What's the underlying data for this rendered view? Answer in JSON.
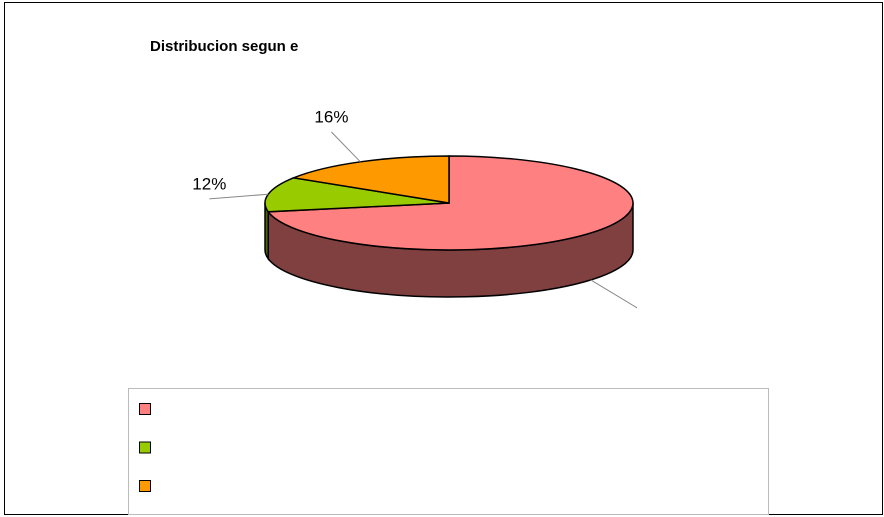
{
  "chart_data": {
    "type": "pie",
    "title": "Distribucion segun e",
    "categories": [
      null,
      null,
      null
    ],
    "values": [
      72,
      12,
      16
    ],
    "value_labels": [
      null,
      "12%",
      "16%"
    ],
    "colors": [
      "#ff8080",
      "#99cc00",
      "#ff9900"
    ],
    "side_colors": [
      "#804040",
      "#4d6600",
      "#804c00"
    ]
  }
}
